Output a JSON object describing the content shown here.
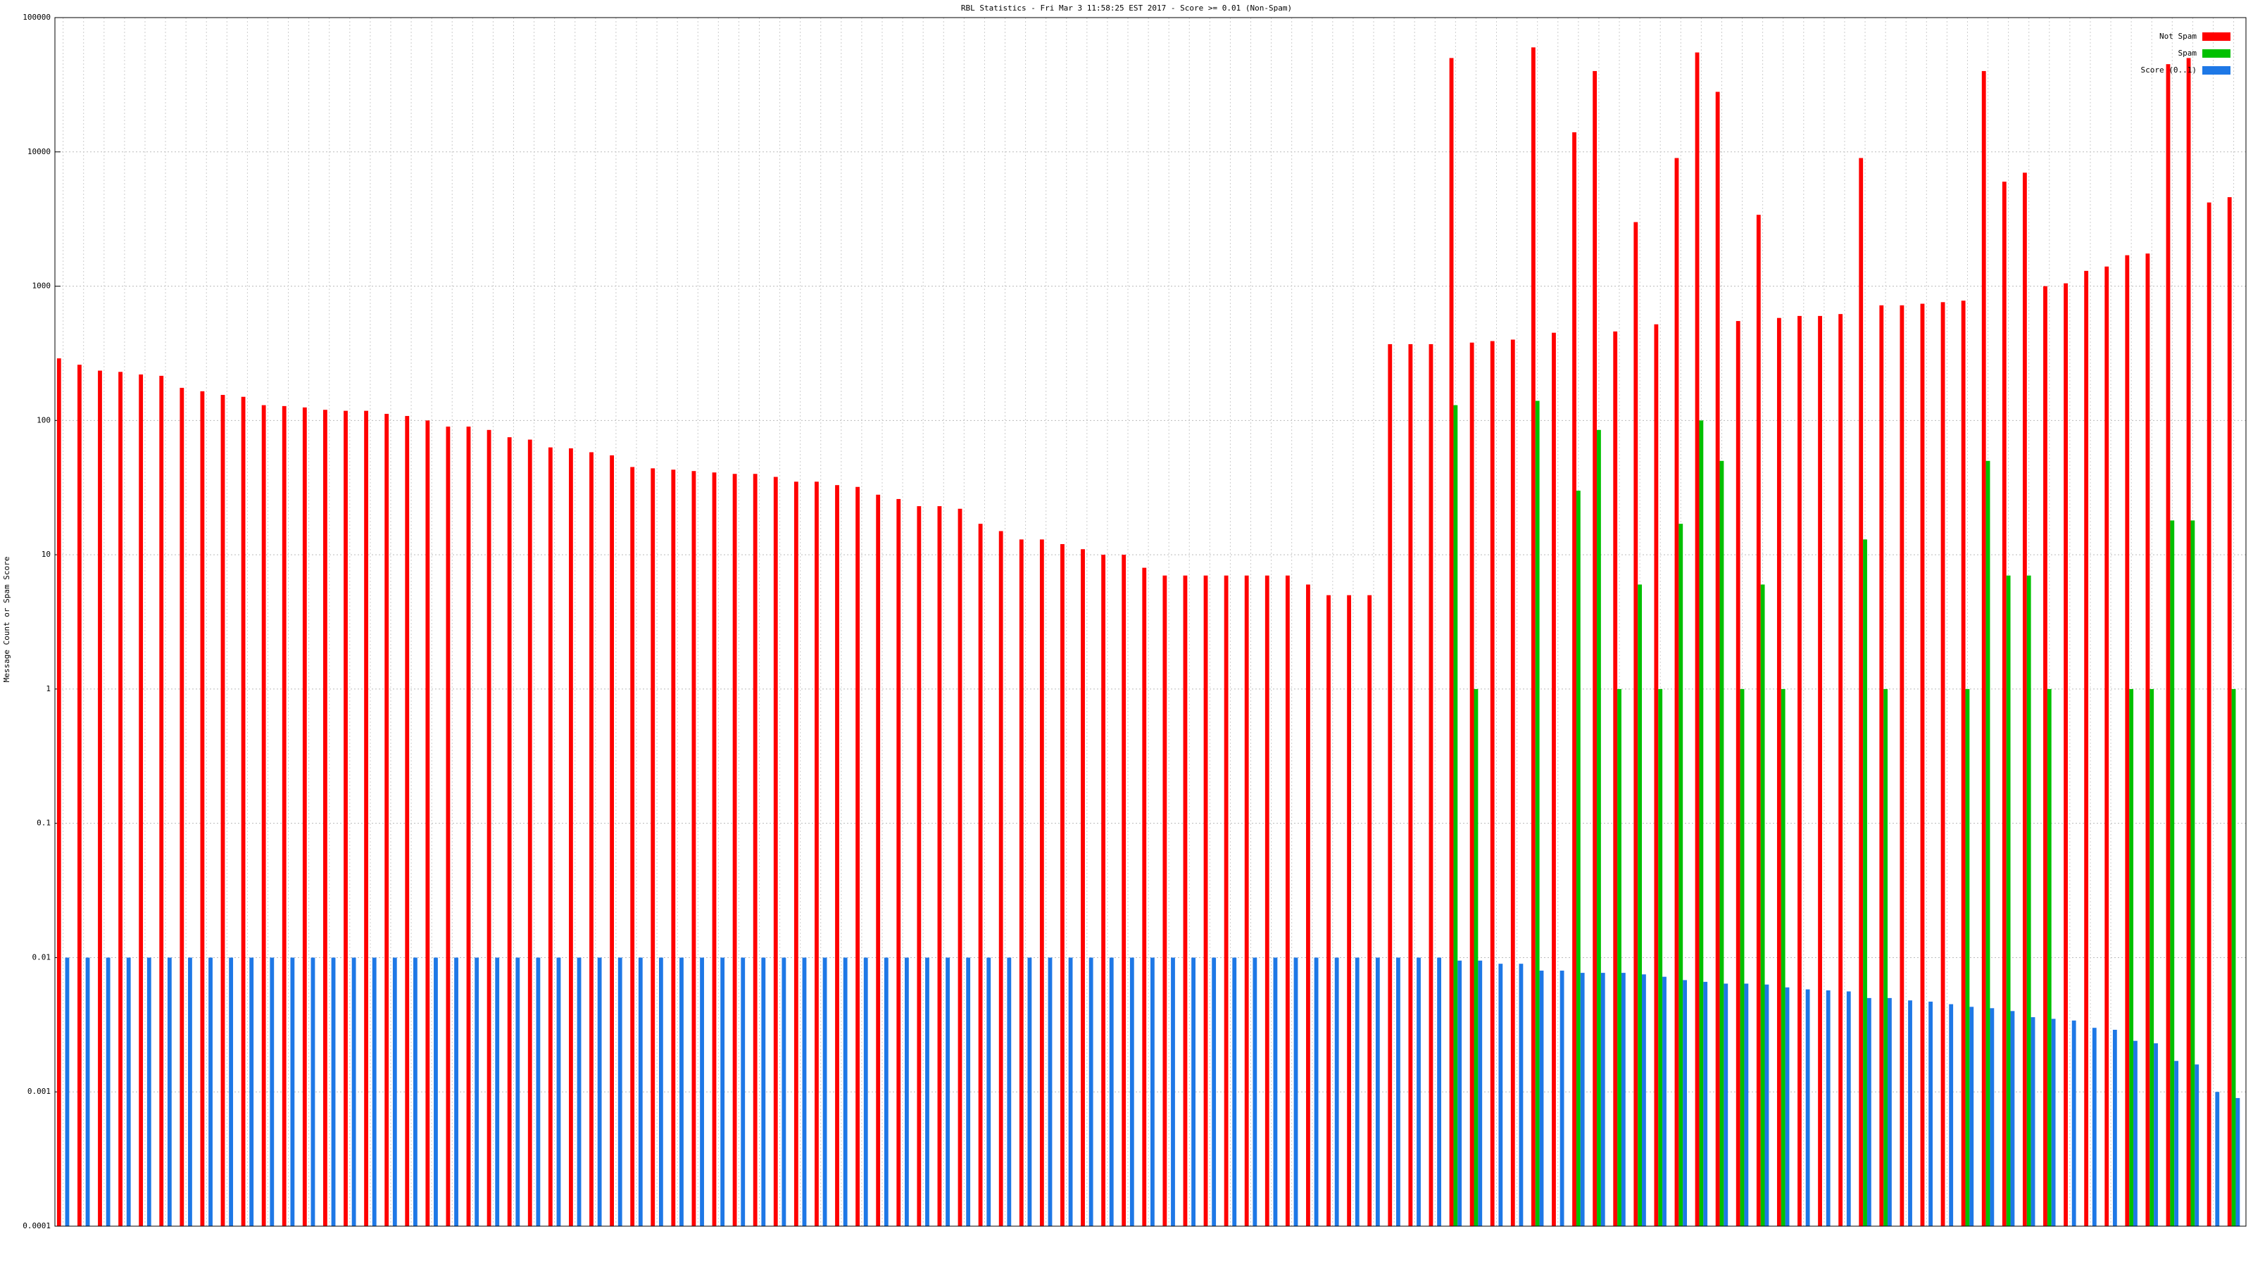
{
  "chart_data": {
    "type": "bar",
    "title": "RBL Statistics - Fri Mar  3 11:58:25 EST 2017 - Score >= 0.01 (Non-Spam)",
    "y_label": "Message Count or Spam Score",
    "log_y": true,
    "grid": true,
    "legend": "top-right",
    "ylim": [
      0.0001,
      100000
    ],
    "yticks": [
      0.0001,
      0.001,
      0.01,
      0.1,
      1,
      10,
      100,
      1000,
      10000,
      100000
    ],
    "categories": [
      null,
      null,
      null,
      null,
      null,
      null,
      null,
      null,
      null,
      null,
      null,
      null,
      null,
      null,
      null,
      null,
      null,
      null,
      null,
      null,
      null,
      null,
      null,
      null,
      null,
      null,
      null,
      null,
      null,
      null,
      null,
      null,
      null,
      null,
      null,
      null,
      null,
      null,
      null,
      null,
      null,
      null,
      null,
      null,
      null,
      null,
      null,
      null,
      null,
      null,
      null,
      null,
      null,
      null,
      null,
      null,
      null,
      null,
      null,
      null,
      null,
      null,
      null,
      null,
      null,
      null,
      null,
      null,
      null,
      null,
      null,
      null,
      null,
      null,
      null,
      null,
      null,
      null,
      null,
      null,
      null,
      null,
      null,
      null,
      null,
      null,
      null,
      null,
      null,
      null,
      null,
      null,
      null,
      null,
      null,
      null,
      null,
      null,
      null,
      null,
      null,
      null,
      null,
      null,
      null,
      null,
      null
    ],
    "series": [
      {
        "name": "Not Spam",
        "color": "#ff0000",
        "values": [
          290,
          260,
          235,
          230,
          220,
          215,
          175,
          165,
          155,
          150,
          130,
          128,
          125,
          120,
          118,
          118,
          112,
          108,
          100,
          90,
          90,
          85,
          75,
          72,
          63,
          62,
          58,
          55,
          45,
          44,
          43,
          42,
          41,
          40,
          40,
          38,
          35,
          35,
          33,
          32,
          28,
          26,
          23,
          23,
          22,
          17,
          15,
          13,
          13,
          12,
          11,
          10,
          10,
          8,
          7,
          7,
          7,
          7,
          7,
          7,
          7,
          6,
          5,
          5,
          5,
          370,
          370,
          370,
          50000,
          380,
          390,
          400,
          60000,
          450,
          14000,
          40000,
          460,
          3000,
          520,
          9000,
          55000,
          28000,
          550,
          3400,
          580,
          600,
          600,
          620,
          9000,
          720,
          720,
          740,
          760,
          780,
          40000,
          6000,
          7000,
          1000,
          1050,
          1300,
          1400,
          1700,
          1750,
          45000,
          50000,
          4200,
          4600
        ]
      },
      {
        "name": "Spam",
        "color": "#00c000",
        "values": [
          null,
          null,
          null,
          null,
          null,
          null,
          null,
          null,
          null,
          null,
          null,
          null,
          null,
          null,
          null,
          null,
          null,
          null,
          null,
          null,
          null,
          null,
          null,
          null,
          null,
          null,
          null,
          null,
          null,
          null,
          null,
          null,
          null,
          null,
          null,
          null,
          null,
          null,
          null,
          null,
          null,
          null,
          null,
          null,
          null,
          null,
          null,
          null,
          null,
          null,
          null,
          null,
          null,
          null,
          null,
          null,
          null,
          null,
          null,
          null,
          null,
          null,
          null,
          null,
          null,
          null,
          null,
          null,
          130,
          1,
          null,
          null,
          140,
          null,
          30,
          85,
          1,
          6,
          1,
          17,
          100,
          50,
          1,
          6,
          1,
          null,
          null,
          null,
          13,
          1,
          null,
          null,
          null,
          1,
          50,
          7,
          7,
          1,
          null,
          null,
          null,
          1,
          1,
          18,
          18,
          null,
          1
        ]
      },
      {
        "name": "Score (0..1)",
        "color": "#1e78e6",
        "values": [
          0.01,
          0.01,
          0.01,
          0.01,
          0.01,
          0.01,
          0.01,
          0.01,
          0.01,
          0.01,
          0.01,
          0.01,
          0.01,
          0.01,
          0.01,
          0.01,
          0.01,
          0.01,
          0.01,
          0.01,
          0.01,
          0.01,
          0.01,
          0.01,
          0.01,
          0.01,
          0.01,
          0.01,
          0.01,
          0.01,
          0.01,
          0.01,
          0.01,
          0.01,
          0.01,
          0.01,
          0.01,
          0.01,
          0.01,
          0.01,
          0.01,
          0.01,
          0.01,
          0.01,
          0.01,
          0.01,
          0.01,
          0.01,
          0.01,
          0.01,
          0.01,
          0.01,
          0.01,
          0.01,
          0.01,
          0.01,
          0.01,
          0.01,
          0.01,
          0.01,
          0.01,
          0.01,
          0.01,
          0.01,
          0.01,
          0.01,
          0.01,
          0.01,
          0.0095,
          0.0095,
          0.009,
          0.009,
          0.008,
          0.008,
          0.0077,
          0.0077,
          0.0077,
          0.0075,
          0.0072,
          0.0068,
          0.0066,
          0.0064,
          0.0064,
          0.0063,
          0.006,
          0.0058,
          0.0057,
          0.0056,
          0.005,
          0.005,
          0.0048,
          0.0047,
          0.0045,
          0.0043,
          0.0042,
          0.004,
          0.0036,
          0.0035,
          0.0034,
          0.003,
          0.0029,
          0.0024,
          0.0023,
          0.0017,
          0.0016,
          0.001,
          0.0009
        ]
      }
    ]
  }
}
